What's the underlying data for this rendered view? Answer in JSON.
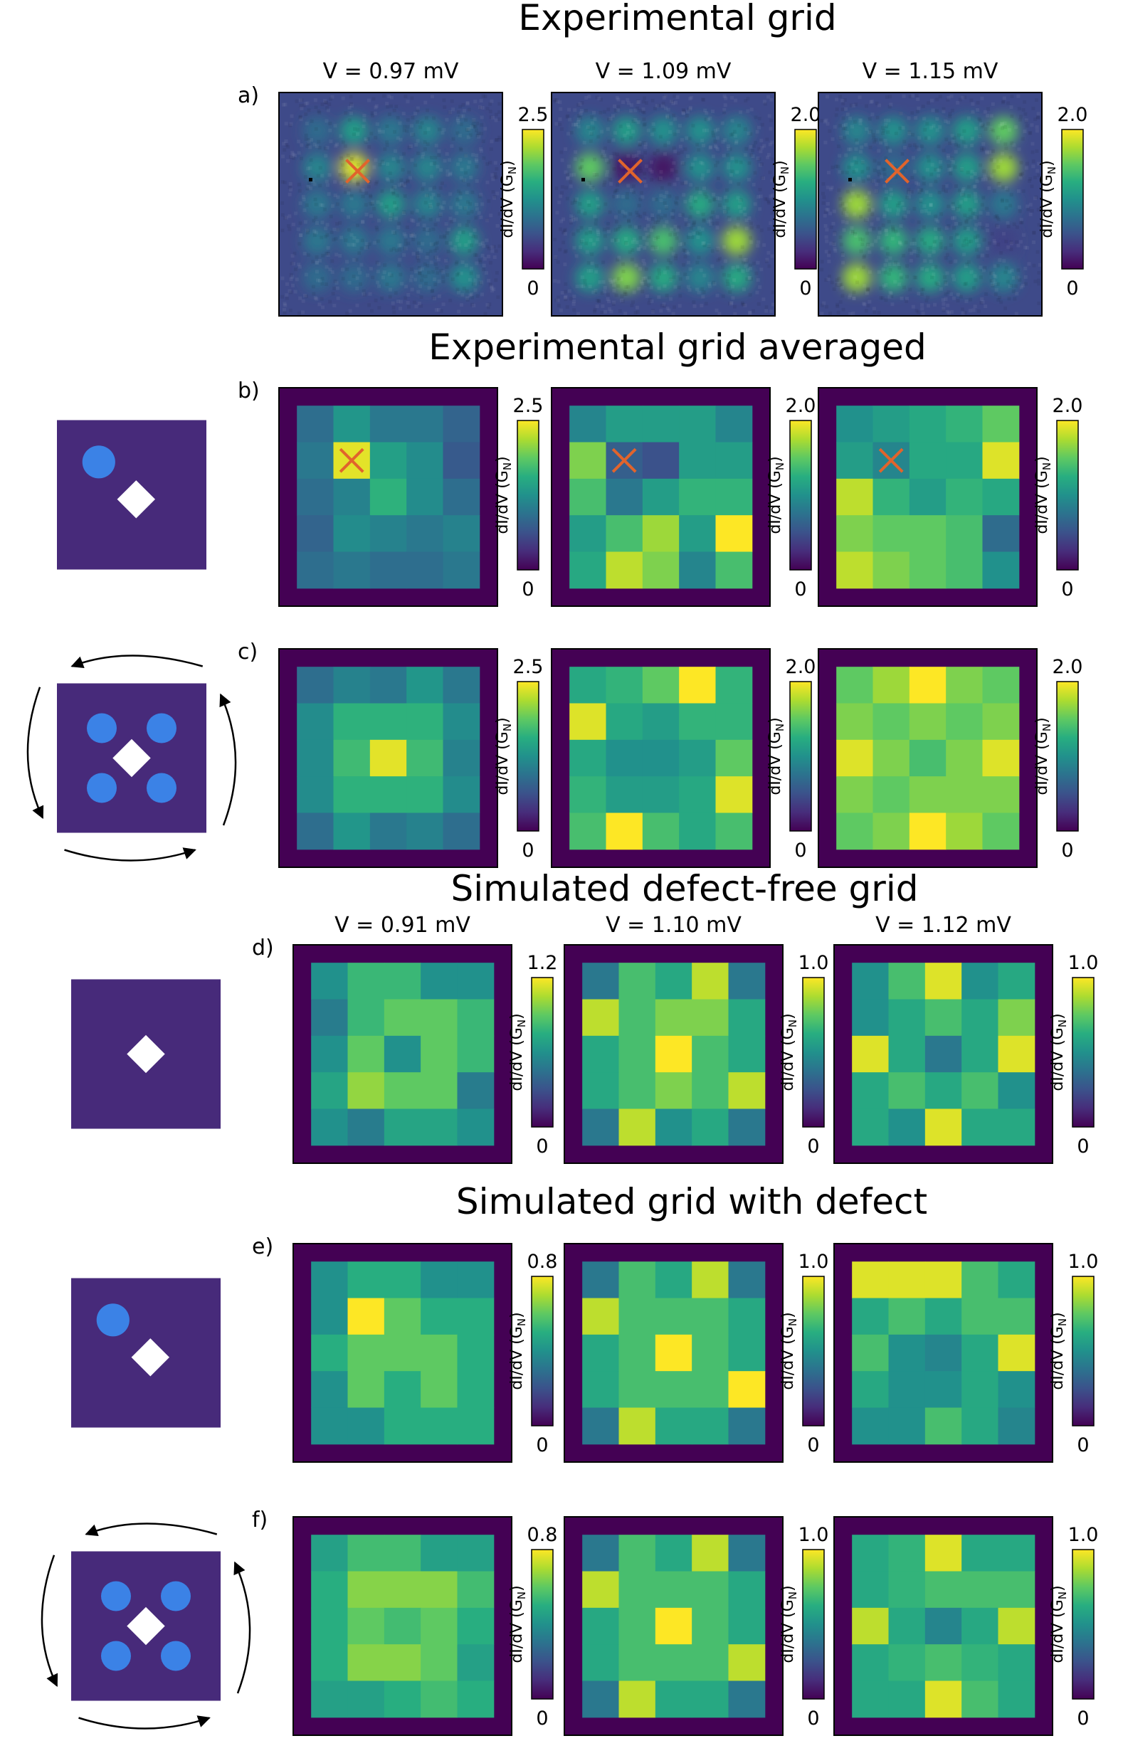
{
  "sections": [
    {
      "title": "Experimental grid"
    },
    {
      "title": "Experimental grid averaged"
    },
    {
      "title": "Simulated defect-free grid"
    },
    {
      "title": "Simulated grid with defect"
    }
  ],
  "colorbar_label": "dI/dV (G",
  "colorbar_label_sub": "N",
  "colorbar_label_end": ")",
  "colorbar_min_label": "0",
  "rows": [
    {
      "panel": "a)",
      "kind": "raw",
      "voltages": [
        "V = 0.97 mV",
        "V = 1.09 mV",
        "V = 1.15 mV"
      ],
      "vmax_labels": [
        "2.5",
        "2.0",
        "2.0"
      ],
      "vmax": [
        2.5,
        2.0,
        2.0
      ],
      "marker": [
        [
          1,
          2
        ],
        [
          1,
          2
        ],
        [
          1,
          2
        ]
      ],
      "icon": "none"
    },
    {
      "panel": "b)",
      "kind": "grid",
      "vmax_labels": [
        "2.5",
        "2.0",
        "2.0"
      ],
      "vmax": [
        2.5,
        2.0,
        2.0
      ],
      "marker": [
        [
          1,
          1
        ],
        [
          1,
          1
        ],
        [
          1,
          1
        ]
      ],
      "icon": "single-defect",
      "grids": [
        [
          [
            0.9,
            1.3,
            1.0,
            1.0,
            0.8
          ],
          [
            1.0,
            2.4,
            1.4,
            1.2,
            0.7
          ],
          [
            0.9,
            1.1,
            1.6,
            1.2,
            0.9
          ],
          [
            0.8,
            1.2,
            1.1,
            1.0,
            1.1
          ],
          [
            0.9,
            1.0,
            0.9,
            0.9,
            1.0
          ]
        ],
        [
          [
            0.9,
            1.1,
            1.1,
            1.1,
            0.9
          ],
          [
            1.6,
            0.6,
            0.5,
            1.1,
            1.1
          ],
          [
            1.4,
            0.8,
            1.1,
            1.3,
            1.3
          ],
          [
            1.1,
            1.4,
            1.7,
            1.1,
            2.0
          ],
          [
            1.2,
            1.8,
            1.6,
            0.9,
            1.4
          ]
        ],
        [
          [
            1.0,
            1.1,
            1.2,
            1.3,
            1.5
          ],
          [
            1.1,
            0.9,
            1.2,
            1.2,
            1.9
          ],
          [
            1.8,
            1.3,
            1.1,
            1.3,
            1.2
          ],
          [
            1.6,
            1.5,
            1.5,
            1.4,
            0.7
          ],
          [
            1.8,
            1.6,
            1.5,
            1.4,
            1.0
          ]
        ]
      ]
    },
    {
      "panel": "c)",
      "kind": "grid",
      "vmax_labels": [
        "2.5",
        "2.0",
        "2.0"
      ],
      "vmax": [
        2.5,
        2.0,
        2.0
      ],
      "icon": "four-defects",
      "grids": [
        [
          [
            0.9,
            1.1,
            1.0,
            1.3,
            1.0
          ],
          [
            1.2,
            1.6,
            1.6,
            1.6,
            1.2
          ],
          [
            1.2,
            1.7,
            2.4,
            1.7,
            1.1
          ],
          [
            1.2,
            1.6,
            1.6,
            1.6,
            1.2
          ],
          [
            0.9,
            1.3,
            1.0,
            1.1,
            0.9
          ]
        ],
        [
          [
            1.2,
            1.3,
            1.5,
            2.0,
            1.3
          ],
          [
            1.9,
            1.2,
            1.1,
            1.3,
            1.3
          ],
          [
            1.2,
            1.0,
            1.0,
            1.1,
            1.5
          ],
          [
            1.3,
            1.1,
            1.1,
            1.2,
            1.9
          ],
          [
            1.4,
            2.0,
            1.4,
            1.2,
            1.4
          ]
        ],
        [
          [
            1.5,
            1.7,
            2.0,
            1.6,
            1.5
          ],
          [
            1.6,
            1.5,
            1.6,
            1.5,
            1.6
          ],
          [
            1.9,
            1.6,
            1.4,
            1.6,
            1.9
          ],
          [
            1.6,
            1.5,
            1.6,
            1.6,
            1.6
          ],
          [
            1.5,
            1.6,
            2.0,
            1.7,
            1.5
          ]
        ]
      ]
    },
    {
      "panel": "d)",
      "kind": "grid",
      "voltages": [
        "V = 0.91 mV",
        "V = 1.10 mV",
        "V = 1.12 mV"
      ],
      "vmax_labels": [
        "1.2",
        "1.0",
        "1.0"
      ],
      "vmax": [
        1.2,
        1.0,
        1.0
      ],
      "icon": "no-defect",
      "grids": [
        [
          [
            0.6,
            0.8,
            0.8,
            0.6,
            0.6
          ],
          [
            0.5,
            0.8,
            0.9,
            0.9,
            0.8
          ],
          [
            0.6,
            0.9,
            0.6,
            0.9,
            0.8
          ],
          [
            0.7,
            1.0,
            0.9,
            0.9,
            0.5
          ],
          [
            0.6,
            0.5,
            0.7,
            0.7,
            0.6
          ]
        ],
        [
          [
            0.4,
            0.7,
            0.6,
            0.9,
            0.4
          ],
          [
            0.9,
            0.7,
            0.8,
            0.8,
            0.6
          ],
          [
            0.6,
            0.7,
            1.0,
            0.7,
            0.6
          ],
          [
            0.6,
            0.7,
            0.8,
            0.7,
            0.9
          ],
          [
            0.4,
            0.9,
            0.5,
            0.6,
            0.4
          ]
        ],
        [
          [
            0.5,
            0.7,
            0.95,
            0.5,
            0.6
          ],
          [
            0.5,
            0.6,
            0.7,
            0.6,
            0.8
          ],
          [
            0.95,
            0.6,
            0.4,
            0.6,
            0.95
          ],
          [
            0.6,
            0.7,
            0.6,
            0.7,
            0.5
          ],
          [
            0.6,
            0.5,
            0.95,
            0.6,
            0.6
          ]
        ]
      ]
    },
    {
      "panel": "e)",
      "kind": "grid",
      "vmax_labels": [
        "0.8",
        "1.0",
        "1.0"
      ],
      "vmax": [
        0.8,
        1.0,
        1.0
      ],
      "icon": "single-defect",
      "grids": [
        [
          [
            0.4,
            0.5,
            0.5,
            0.4,
            0.4
          ],
          [
            0.4,
            0.8,
            0.6,
            0.5,
            0.5
          ],
          [
            0.5,
            0.6,
            0.6,
            0.6,
            0.5
          ],
          [
            0.4,
            0.6,
            0.5,
            0.6,
            0.5
          ],
          [
            0.4,
            0.4,
            0.5,
            0.5,
            0.5
          ]
        ],
        [
          [
            0.4,
            0.7,
            0.6,
            0.9,
            0.4
          ],
          [
            0.9,
            0.7,
            0.7,
            0.7,
            0.6
          ],
          [
            0.6,
            0.7,
            1.0,
            0.7,
            0.6
          ],
          [
            0.6,
            0.7,
            0.7,
            0.7,
            1.0
          ],
          [
            0.4,
            0.9,
            0.6,
            0.6,
            0.4
          ]
        ],
        [
          [
            0.95,
            0.95,
            0.95,
            0.7,
            0.6
          ],
          [
            0.6,
            0.7,
            0.6,
            0.7,
            0.7
          ],
          [
            0.7,
            0.5,
            0.45,
            0.6,
            0.95
          ],
          [
            0.6,
            0.5,
            0.5,
            0.6,
            0.5
          ],
          [
            0.5,
            0.5,
            0.7,
            0.6,
            0.45
          ]
        ]
      ]
    },
    {
      "panel": "f)",
      "kind": "grid",
      "vmax_labels": [
        "0.8",
        "1.0",
        "1.0"
      ],
      "vmax": [
        0.8,
        1.0,
        1.0
      ],
      "icon": "four-defects",
      "grids": [
        [
          [
            0.45,
            0.55,
            0.55,
            0.45,
            0.45
          ],
          [
            0.5,
            0.65,
            0.65,
            0.65,
            0.55
          ],
          [
            0.5,
            0.6,
            0.55,
            0.6,
            0.5
          ],
          [
            0.5,
            0.65,
            0.65,
            0.6,
            0.45
          ],
          [
            0.45,
            0.45,
            0.5,
            0.55,
            0.5
          ]
        ],
        [
          [
            0.4,
            0.7,
            0.6,
            0.9,
            0.4
          ],
          [
            0.9,
            0.7,
            0.7,
            0.7,
            0.6
          ],
          [
            0.6,
            0.7,
            1.0,
            0.7,
            0.6
          ],
          [
            0.6,
            0.7,
            0.7,
            0.7,
            0.9
          ],
          [
            0.4,
            0.9,
            0.6,
            0.6,
            0.4
          ]
        ],
        [
          [
            0.6,
            0.65,
            0.95,
            0.6,
            0.6
          ],
          [
            0.6,
            0.65,
            0.7,
            0.7,
            0.7
          ],
          [
            0.9,
            0.6,
            0.45,
            0.6,
            0.9
          ],
          [
            0.6,
            0.65,
            0.7,
            0.65,
            0.6
          ],
          [
            0.6,
            0.6,
            0.95,
            0.7,
            0.6
          ]
        ]
      ]
    }
  ],
  "colors": {
    "frame": "#440154",
    "icon_background": "#472a7a",
    "icon_disc": "#3b82e6",
    "icon_square": "#ffffff",
    "marker": "#e1642c",
    "raw_background": "#3e4a89"
  }
}
